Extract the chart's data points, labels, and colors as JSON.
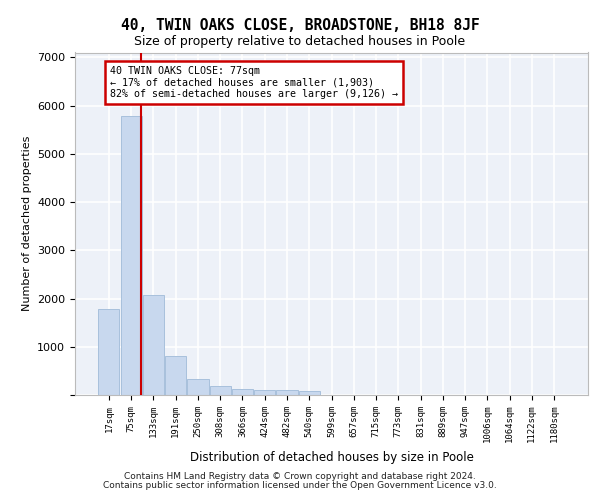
{
  "title_line1": "40, TWIN OAKS CLOSE, BROADSTONE, BH18 8JF",
  "title_line2": "Size of property relative to detached houses in Poole",
  "xlabel": "Distribution of detached houses by size in Poole",
  "ylabel": "Number of detached properties",
  "footnote1": "Contains HM Land Registry data © Crown copyright and database right 2024.",
  "footnote2": "Contains public sector information licensed under the Open Government Licence v3.0.",
  "annotation_line1": "40 TWIN OAKS CLOSE: 77sqm",
  "annotation_line2": "← 17% of detached houses are smaller (1,903)",
  "annotation_line3": "82% of semi-detached houses are larger (9,126) →",
  "bar_labels": [
    "17sqm",
    "75sqm",
    "133sqm",
    "191sqm",
    "250sqm",
    "308sqm",
    "366sqm",
    "424sqm",
    "482sqm",
    "540sqm",
    "599sqm",
    "657sqm",
    "715sqm",
    "773sqm",
    "831sqm",
    "889sqm",
    "947sqm",
    "1006sqm",
    "1064sqm",
    "1122sqm",
    "1180sqm"
  ],
  "bar_values": [
    1780,
    5780,
    2080,
    800,
    340,
    190,
    120,
    110,
    100,
    90,
    0,
    0,
    0,
    0,
    0,
    0,
    0,
    0,
    0,
    0,
    0
  ],
  "bar_color": "#c8d8ee",
  "bar_edge_color": "#a8c0dc",
  "property_line_x": 1.45,
  "property_line_color": "#cc0000",
  "annotation_box_color": "#cc0000",
  "annotation_box_facecolor": "white",
  "background_color": "#edf1f8",
  "grid_color": "white",
  "ylim": [
    0,
    7100
  ],
  "yticks": [
    0,
    1000,
    2000,
    3000,
    4000,
    5000,
    6000,
    7000
  ]
}
